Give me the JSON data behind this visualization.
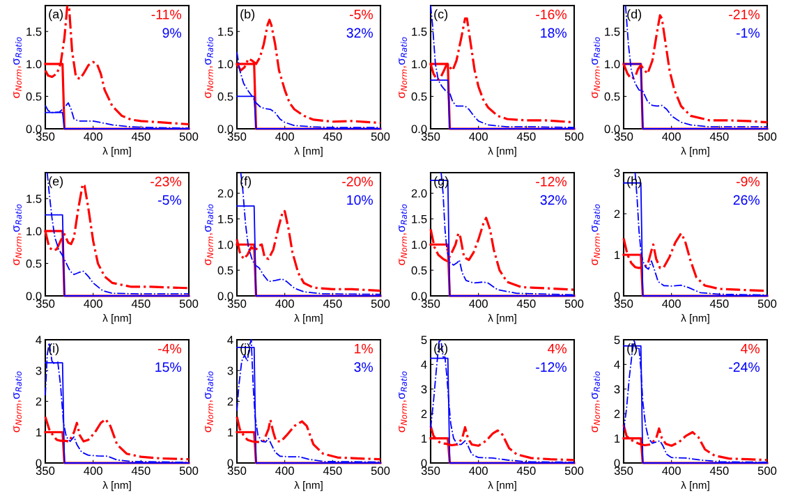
{
  "chart_data": [
    {
      "type": "line",
      "xlabel": "λ [nm]",
      "ylabel": "σ$_{Norm}$,σ$_{Ratio}$",
      "annotations": [
        "(a)",
        "-11%",
        "9%"
      ],
      "xlim": [
        350,
        500
      ],
      "ylim": [
        0,
        1.9
      ],
      "xticks": [
        350,
        400,
        450,
        500
      ],
      "yticks": [
        {
          "value": 0,
          "label": "0.0"
        },
        0.5,
        {
          "value": 1,
          "label": "1.0"
        },
        1.5
      ],
      "grid": false,
      "series": [
        {
          "color": "#ff0000",
          "line_style": "solid",
          "x": [
            350,
            368,
            370,
            500
          ],
          "values": [
            1,
            1,
            0,
            0
          ]
        },
        {
          "color": "#0000ff",
          "line_style": "solid",
          "x": [
            350,
            368,
            370,
            500
          ],
          "values": [
            0.25,
            0.25,
            0,
            0
          ]
        },
        {
          "color": "#ff0000",
          "line_style": "dashdot",
          "x": [
            350,
            353,
            357,
            362,
            366,
            370,
            373,
            375,
            378,
            382,
            386,
            390,
            395,
            400,
            404,
            408,
            412,
            420,
            430,
            440,
            450,
            470,
            500
          ],
          "values": [
            0.9,
            0.82,
            0.8,
            0.85,
            1.0,
            1.4,
            1.9,
            1.85,
            1.2,
            0.8,
            0.77,
            0.85,
            0.98,
            1.03,
            1.0,
            0.85,
            0.6,
            0.35,
            0.2,
            0.14,
            0.12,
            0.1,
            0.07
          ]
        },
        {
          "color": "#0000ff",
          "line_style": "dashdot",
          "x": [
            350,
            353,
            357,
            365,
            370,
            374,
            377,
            380,
            385,
            400,
            410,
            420,
            440,
            460,
            500
          ],
          "values": [
            0.36,
            0.28,
            0.25,
            0.26,
            0.33,
            0.4,
            0.3,
            0.15,
            0.12,
            0.12,
            0.09,
            0.06,
            0.03,
            0.02,
            0.01
          ]
        }
      ]
    },
    {
      "type": "line",
      "xlabel": "λ [nm]",
      "ylabel": "σ$_{Norm}$,σ$_{Ratio}$",
      "annotations": [
        "(b)",
        "-5%",
        "32%"
      ],
      "xlim": [
        350,
        500
      ],
      "ylim": [
        0,
        1.9
      ],
      "xticks": [
        350,
        400,
        450,
        500
      ],
      "yticks": [
        {
          "value": 0,
          "label": "0.0"
        },
        0.5,
        {
          "value": 1,
          "label": "1.0"
        },
        1.5
      ],
      "grid": false,
      "series": [
        {
          "color": "#ff0000",
          "line_style": "solid",
          "x": [
            350,
            368,
            370,
            500
          ],
          "values": [
            1,
            1,
            0,
            0
          ]
        },
        {
          "color": "#0000ff",
          "line_style": "solid",
          "x": [
            350,
            368,
            370,
            500
          ],
          "values": [
            0.5,
            0.5,
            0,
            0
          ]
        },
        {
          "color": "#ff0000",
          "line_style": "dashdot",
          "x": [
            350,
            354,
            358,
            362,
            366,
            370,
            374,
            378,
            382,
            384,
            386,
            390,
            394,
            400,
            405,
            410,
            420,
            430,
            450,
            470,
            500
          ],
          "values": [
            1.0,
            0.9,
            0.95,
            1.08,
            1.05,
            1.0,
            1.1,
            1.3,
            1.6,
            1.68,
            1.6,
            1.3,
            0.9,
            0.6,
            0.4,
            0.3,
            0.2,
            0.14,
            0.11,
            0.12,
            0.09
          ]
        },
        {
          "color": "#0000ff",
          "line_style": "dashdot",
          "x": [
            350,
            353,
            357,
            362,
            366,
            370,
            375,
            380,
            385,
            390,
            395,
            400,
            410,
            430,
            450,
            500
          ],
          "values": [
            1.18,
            0.9,
            0.7,
            0.58,
            0.5,
            0.4,
            0.33,
            0.31,
            0.3,
            0.25,
            0.15,
            0.1,
            0.05,
            0.03,
            0.02,
            0.02
          ]
        }
      ]
    },
    {
      "type": "line",
      "xlabel": "λ [nm]",
      "ylabel": "σ$_{Norm}$,σ$_{Ratio}$",
      "annotations": [
        "(c)",
        "-16%",
        "18%"
      ],
      "xlim": [
        350,
        500
      ],
      "ylim": [
        0,
        1.9
      ],
      "xticks": [
        350,
        400,
        450,
        500
      ],
      "yticks": [
        {
          "value": 0,
          "label": "0.0"
        },
        0.5,
        {
          "value": 1,
          "label": "1.0"
        },
        1.5
      ],
      "grid": false,
      "series": [
        {
          "color": "#ff0000",
          "line_style": "solid",
          "x": [
            350,
            368,
            370,
            500
          ],
          "values": [
            1,
            1,
            0,
            0
          ]
        },
        {
          "color": "#0000ff",
          "line_style": "solid",
          "x": [
            350,
            368,
            370,
            500
          ],
          "values": [
            0.75,
            0.75,
            0,
            0
          ]
        },
        {
          "color": "#ff0000",
          "line_style": "dashdot",
          "x": [
            350,
            353,
            357,
            360,
            364,
            367,
            370,
            373,
            377,
            382,
            386,
            388,
            392,
            396,
            400,
            405,
            410,
            420,
            430,
            450,
            470,
            500
          ],
          "values": [
            1.0,
            0.85,
            0.75,
            0.78,
            0.9,
            1.0,
            0.95,
            0.9,
            1.05,
            1.4,
            1.7,
            1.7,
            1.3,
            0.9,
            0.65,
            0.45,
            0.33,
            0.2,
            0.15,
            0.13,
            0.13,
            0.1
          ]
        },
        {
          "color": "#0000ff",
          "line_style": "dashdot",
          "x": [
            350,
            352,
            355,
            358,
            362,
            366,
            370,
            373,
            377,
            382,
            386,
            390,
            395,
            400,
            410,
            430,
            460,
            500
          ],
          "values": [
            1.9,
            1.6,
            1.0,
            0.75,
            0.65,
            0.58,
            0.55,
            0.42,
            0.35,
            0.35,
            0.35,
            0.3,
            0.2,
            0.12,
            0.06,
            0.03,
            0.03,
            0.02
          ]
        }
      ]
    },
    {
      "type": "line",
      "xlabel": "λ [nm]",
      "ylabel": "σ$_{Norm}$,σ$_{Ratio}$",
      "annotations": [
        "(d)",
        "-21%",
        "-1%"
      ],
      "xlim": [
        350,
        500
      ],
      "ylim": [
        0,
        1.9
      ],
      "xticks": [
        350,
        400,
        450,
        500
      ],
      "yticks": [
        {
          "value": 0,
          "label": "0.0"
        },
        0.5,
        {
          "value": 1,
          "label": "1.0"
        },
        1.5
      ],
      "grid": false,
      "series": [
        {
          "color": "#ff0000",
          "line_style": "solid",
          "x": [
            350,
            368,
            370,
            500
          ],
          "values": [
            1,
            1,
            0,
            0
          ]
        },
        {
          "color": "#0000ff",
          "line_style": "solid",
          "x": [
            350,
            368,
            370,
            500
          ],
          "values": [
            1,
            1,
            0,
            0
          ]
        },
        {
          "color": "#ff0000",
          "line_style": "dashdot",
          "x": [
            350,
            354,
            358,
            362,
            365,
            368,
            371,
            375,
            380,
            385,
            388,
            390,
            394,
            398,
            403,
            410,
            420,
            440,
            460,
            480,
            500
          ],
          "values": [
            1.0,
            0.85,
            0.77,
            0.8,
            0.92,
            0.98,
            0.92,
            0.85,
            1.05,
            1.5,
            1.75,
            1.7,
            1.3,
            0.9,
            0.6,
            0.35,
            0.2,
            0.13,
            0.13,
            0.12,
            0.1
          ]
        },
        {
          "color": "#0000ff",
          "line_style": "dashdot",
          "x": [
            352,
            355,
            358,
            362,
            366,
            370,
            375,
            380,
            385,
            390,
            395,
            400,
            410,
            420,
            440,
            500
          ],
          "values": [
            1.9,
            1.3,
            0.9,
            0.7,
            0.6,
            0.58,
            0.42,
            0.36,
            0.35,
            0.36,
            0.3,
            0.2,
            0.1,
            0.06,
            0.03,
            0.03
          ]
        }
      ]
    },
    {
      "type": "line",
      "xlabel": "λ [nm]",
      "ylabel": "σ$_{Norm}$,σ$_{Ratio}$",
      "annotations": [
        "(e)",
        "-23%",
        "-5%"
      ],
      "xlim": [
        350,
        500
      ],
      "ylim": [
        0,
        1.9
      ],
      "xticks": [
        350,
        400,
        450,
        500
      ],
      "yticks": [
        {
          "value": 0,
          "label": "0.0"
        },
        0.5,
        {
          "value": 1,
          "label": "1.0"
        },
        1.5
      ],
      "grid": false,
      "series": [
        {
          "color": "#ff0000",
          "line_style": "solid",
          "x": [
            350,
            368,
            370,
            500
          ],
          "values": [
            1,
            1,
            0,
            0
          ]
        },
        {
          "color": "#0000ff",
          "line_style": "solid",
          "x": [
            350,
            368,
            370,
            500
          ],
          "values": [
            1.25,
            1.25,
            0,
            0
          ]
        },
        {
          "color": "#ff0000",
          "line_style": "dashdot",
          "x": [
            350,
            354,
            358,
            362,
            366,
            370,
            374,
            377,
            380,
            384,
            389,
            391,
            395,
            400,
            405,
            412,
            420,
            440,
            460,
            480,
            500
          ],
          "values": [
            1.0,
            0.75,
            0.7,
            0.72,
            0.85,
            0.95,
            0.82,
            0.8,
            0.9,
            1.3,
            1.72,
            1.7,
            1.35,
            0.85,
            0.5,
            0.3,
            0.2,
            0.14,
            0.14,
            0.13,
            0.12
          ]
        },
        {
          "color": "#0000ff",
          "line_style": "dashdot",
          "x": [
            352,
            354,
            357,
            360,
            364,
            368,
            372,
            376,
            380,
            385,
            390,
            395,
            400,
            410,
            420,
            450,
            500
          ],
          "values": [
            1.9,
            1.6,
            1.2,
            0.9,
            0.72,
            0.62,
            0.5,
            0.38,
            0.33,
            0.36,
            0.38,
            0.3,
            0.2,
            0.08,
            0.04,
            0.03,
            0.03
          ]
        }
      ]
    },
    {
      "type": "line",
      "xlabel": "λ [nm]",
      "ylabel": "σ$_{Norm}$,σ$_{Ratio}$",
      "annotations": [
        "(f)",
        "-20%",
        "10%"
      ],
      "xlim": [
        350,
        500
      ],
      "ylim": [
        0,
        2.4
      ],
      "xticks": [
        350,
        400,
        450,
        500
      ],
      "yticks": [
        {
          "value": 0,
          "label": "0.0"
        },
        0.5,
        {
          "value": 1,
          "label": "1.0"
        },
        1.5,
        {
          "value": 2,
          "label": "2.0"
        }
      ],
      "grid": false,
      "series": [
        {
          "color": "#ff0000",
          "line_style": "solid",
          "x": [
            350,
            368,
            370,
            500
          ],
          "values": [
            1,
            1,
            0,
            0
          ]
        },
        {
          "color": "#0000ff",
          "line_style": "solid",
          "x": [
            350,
            368,
            370,
            500
          ],
          "values": [
            1.75,
            1.75,
            0,
            0
          ]
        },
        {
          "color": "#ff0000",
          "line_style": "dashdot",
          "x": [
            350,
            353,
            357,
            361,
            365,
            369,
            373,
            376,
            379,
            383,
            388,
            393,
            398,
            400,
            404,
            408,
            414,
            420,
            430,
            450,
            470,
            500
          ],
          "values": [
            1.1,
            0.85,
            0.72,
            0.8,
            0.95,
            0.88,
            0.98,
            1.0,
            0.75,
            0.72,
            0.9,
            1.3,
            1.65,
            1.65,
            1.3,
            0.85,
            0.45,
            0.25,
            0.16,
            0.13,
            0.13,
            0.1
          ]
        },
        {
          "color": "#0000ff",
          "line_style": "dashdot",
          "x": [
            354,
            356,
            359,
            362,
            366,
            369,
            373,
            378,
            383,
            390,
            397,
            402,
            410,
            420,
            440,
            500
          ],
          "values": [
            2.4,
            2.1,
            1.4,
            0.95,
            0.7,
            0.6,
            0.55,
            0.4,
            0.28,
            0.3,
            0.33,
            0.28,
            0.15,
            0.08,
            0.04,
            0.03
          ]
        }
      ]
    },
    {
      "type": "line",
      "xlabel": "λ [nm]",
      "ylabel": "σ$_{Norm}$,σ$_{Ratio}$",
      "annotations": [
        "(g)",
        "-12%",
        "32%"
      ],
      "xlim": [
        350,
        500
      ],
      "ylim": [
        0,
        2.4
      ],
      "xticks": [
        350,
        400,
        450,
        500
      ],
      "yticks": [
        {
          "value": 0,
          "label": "0.0"
        },
        0.5,
        {
          "value": 1,
          "label": "1.0"
        },
        1.5,
        {
          "value": 2,
          "label": "2.0"
        }
      ],
      "grid": false,
      "series": [
        {
          "color": "#ff0000",
          "line_style": "solid",
          "x": [
            350,
            368,
            370,
            500
          ],
          "values": [
            1,
            1,
            0,
            0
          ]
        },
        {
          "color": "#0000ff",
          "line_style": "solid",
          "x": [
            350,
            368,
            370,
            500
          ],
          "values": [
            2.25,
            2.25,
            0,
            0
          ]
        },
        {
          "color": "#ff0000",
          "line_style": "dashdot",
          "x": [
            350,
            354,
            358,
            363,
            367,
            371,
            376,
            379,
            381,
            385,
            390,
            395,
            400,
            405,
            408,
            412,
            416,
            422,
            430,
            445,
            470,
            500
          ],
          "values": [
            1.3,
            0.95,
            0.8,
            0.72,
            0.68,
            0.8,
            1.0,
            1.22,
            1.15,
            0.75,
            0.7,
            0.85,
            1.1,
            1.4,
            1.52,
            1.3,
            0.9,
            0.5,
            0.27,
            0.17,
            0.15,
            0.12
          ]
        },
        {
          "color": "#0000ff",
          "line_style": "dashdot",
          "x": [
            361,
            363,
            365,
            367,
            370,
            374,
            378,
            380,
            383,
            387,
            395,
            405,
            410,
            420,
            440,
            500
          ],
          "values": [
            2.4,
            2.0,
            1.3,
            0.9,
            0.65,
            0.6,
            0.65,
            0.7,
            0.45,
            0.3,
            0.25,
            0.27,
            0.25,
            0.12,
            0.05,
            0.02
          ]
        }
      ]
    },
    {
      "type": "line",
      "xlabel": "λ [nm]",
      "ylabel": "σ$_{Norm}$,σ$_{Ratio}$",
      "annotations": [
        "(h)",
        "-9%",
        "26%"
      ],
      "xlim": [
        350,
        500
      ],
      "ylim": [
        0,
        3
      ],
      "xticks": [
        350,
        400,
        450,
        500
      ],
      "yticks": [
        0,
        1,
        2,
        3
      ],
      "grid": false,
      "series": [
        {
          "color": "#ff0000",
          "line_style": "solid",
          "x": [
            350,
            368,
            370,
            500
          ],
          "values": [
            1,
            1,
            0,
            0
          ]
        },
        {
          "color": "#0000ff",
          "line_style": "solid",
          "x": [
            350,
            368,
            370,
            500
          ],
          "values": [
            2.75,
            2.75,
            0,
            0
          ]
        },
        {
          "color": "#ff0000",
          "line_style": "dashdot",
          "x": [
            350,
            354,
            358,
            362,
            366,
            370,
            375,
            379,
            381,
            384,
            388,
            392,
            398,
            404,
            410,
            414,
            420,
            426,
            435,
            450,
            470,
            500
          ],
          "values": [
            1.4,
            1.0,
            0.8,
            0.7,
            0.68,
            0.7,
            0.75,
            1.1,
            1.25,
            0.9,
            0.68,
            0.7,
            0.95,
            1.3,
            1.52,
            1.35,
            0.85,
            0.45,
            0.25,
            0.17,
            0.15,
            0.12
          ]
        },
        {
          "color": "#0000ff",
          "line_style": "dashdot",
          "x": [
            362,
            364,
            366,
            368,
            370,
            373,
            376,
            379,
            382,
            386,
            392,
            400,
            410,
            418,
            430,
            450,
            500
          ],
          "values": [
            3.0,
            2.4,
            1.6,
            1.1,
            0.85,
            0.7,
            0.65,
            0.85,
            0.65,
            0.35,
            0.25,
            0.24,
            0.26,
            0.2,
            0.08,
            0.04,
            0.02
          ]
        }
      ]
    },
    {
      "type": "line",
      "xlabel": "λ [nm]",
      "ylabel": "σ$_{Norm}$,σ$_{Ratio}$",
      "annotations": [
        "(i)",
        "-4%",
        "15%"
      ],
      "xlim": [
        350,
        500
      ],
      "ylim": [
        0,
        4
      ],
      "xticks": [
        350,
        400,
        450,
        500
      ],
      "yticks": [
        0,
        1,
        2,
        3,
        4
      ],
      "grid": false,
      "series": [
        {
          "color": "#ff0000",
          "line_style": "solid",
          "x": [
            350,
            368,
            370,
            500
          ],
          "values": [
            1,
            1,
            0,
            0
          ]
        },
        {
          "color": "#0000ff",
          "line_style": "solid",
          "x": [
            350,
            368,
            370,
            500
          ],
          "values": [
            3.25,
            3.25,
            0,
            0
          ]
        },
        {
          "color": "#ff0000",
          "line_style": "dashdot",
          "x": [
            350,
            354,
            358,
            362,
            366,
            370,
            375,
            380,
            383,
            386,
            390,
            395,
            402,
            408,
            413,
            418,
            425,
            435,
            450,
            470,
            500
          ],
          "values": [
            1.5,
            1.1,
            0.9,
            0.75,
            0.72,
            0.72,
            0.7,
            1.0,
            1.3,
            0.9,
            0.7,
            0.75,
            1.0,
            1.3,
            1.42,
            1.2,
            0.6,
            0.3,
            0.2,
            0.15,
            0.12
          ]
        },
        {
          "color": "#0000ff",
          "line_style": "dashdot",
          "x": [
            350,
            352,
            354,
            357,
            360,
            363,
            366,
            369,
            372,
            376,
            380,
            383,
            388,
            395,
            405,
            415,
            425,
            440,
            500
          ],
          "values": [
            2.2,
            3.5,
            3.9,
            3.3,
            3.2,
            3.3,
            2.5,
            1.3,
            0.85,
            0.7,
            0.85,
            0.6,
            0.35,
            0.25,
            0.23,
            0.22,
            0.1,
            0.05,
            0.02
          ]
        }
      ]
    },
    {
      "type": "line",
      "xlabel": "λ [nm]",
      "ylabel": "σ$_{Norm}$,σ$_{Ratio}$",
      "annotations": [
        "(j)",
        "1%",
        "3%"
      ],
      "xlim": [
        350,
        500
      ],
      "ylim": [
        0,
        4
      ],
      "xticks": [
        350,
        400,
        450,
        500
      ],
      "yticks": [
        0,
        1,
        2,
        3,
        4
      ],
      "grid": false,
      "series": [
        {
          "color": "#ff0000",
          "line_style": "solid",
          "x": [
            350,
            368,
            370,
            500
          ],
          "values": [
            1,
            1,
            0,
            0
          ]
        },
        {
          "color": "#0000ff",
          "line_style": "solid",
          "x": [
            350,
            368,
            370,
            500
          ],
          "values": [
            3.75,
            3.75,
            0,
            0
          ]
        },
        {
          "color": "#ff0000",
          "line_style": "dashdot",
          "x": [
            350,
            353,
            357,
            361,
            366,
            372,
            378,
            383,
            385,
            388,
            391,
            396,
            402,
            410,
            418,
            423,
            430,
            440,
            455,
            475,
            500
          ],
          "values": [
            1.5,
            1.1,
            0.9,
            0.75,
            0.7,
            0.68,
            0.72,
            1.1,
            1.4,
            1.0,
            0.7,
            0.7,
            0.9,
            1.2,
            1.35,
            1.2,
            0.6,
            0.3,
            0.18,
            0.15,
            0.12
          ]
        },
        {
          "color": "#0000ff",
          "line_style": "dashdot",
          "x": [
            350,
            352,
            355,
            358,
            361,
            363,
            365,
            367,
            369,
            372,
            376,
            380,
            383,
            386,
            390,
            395,
            405,
            415,
            425,
            440,
            500
          ],
          "values": [
            1.7,
            2.5,
            3.3,
            3.5,
            3.3,
            3.8,
            4.0,
            2.5,
            1.5,
            0.9,
            0.7,
            0.68,
            0.8,
            0.6,
            0.35,
            0.22,
            0.2,
            0.2,
            0.12,
            0.05,
            0.03
          ]
        }
      ]
    },
    {
      "type": "line",
      "xlabel": "λ [nm]",
      "ylabel": "σ$_{Norm}$,σ$_{Ratio}$",
      "annotations": [
        "(k)",
        "4%",
        "-12%"
      ],
      "xlim": [
        350,
        500
      ],
      "ylim": [
        0,
        5
      ],
      "xticks": [
        350,
        400,
        450,
        500
      ],
      "yticks": [
        0,
        1,
        2,
        3,
        4,
        5
      ],
      "grid": false,
      "series": [
        {
          "color": "#ff0000",
          "line_style": "solid",
          "x": [
            350,
            368,
            370,
            500
          ],
          "values": [
            1,
            1,
            0,
            0
          ]
        },
        {
          "color": "#0000ff",
          "line_style": "solid",
          "x": [
            350,
            368,
            370,
            500
          ],
          "values": [
            4.25,
            4.25,
            0,
            0
          ]
        },
        {
          "color": "#ff0000",
          "line_style": "dashdot",
          "x": [
            350,
            353,
            357,
            361,
            366,
            372,
            378,
            383,
            386,
            389,
            393,
            400,
            408,
            415,
            420,
            425,
            432,
            440,
            455,
            475,
            500
          ],
          "values": [
            1.5,
            1.1,
            0.9,
            0.8,
            0.78,
            0.72,
            0.75,
            1.0,
            1.45,
            1.0,
            0.75,
            0.7,
            0.9,
            1.2,
            1.32,
            1.15,
            0.6,
            0.35,
            0.2,
            0.15,
            0.12
          ]
        },
        {
          "color": "#0000ff",
          "line_style": "dashdot",
          "x": [
            350,
            353,
            356,
            359,
            361,
            363,
            365,
            367,
            369,
            371,
            374,
            378,
            382,
            386,
            389,
            393,
            400,
            415,
            430,
            450,
            500
          ],
          "values": [
            1.4,
            2.5,
            3.8,
            5.0,
            4.9,
            4.3,
            4.3,
            3.5,
            2.5,
            1.6,
            1.0,
            0.75,
            0.75,
            0.9,
            0.7,
            0.35,
            0.22,
            0.2,
            0.12,
            0.05,
            0.03
          ]
        }
      ]
    },
    {
      "type": "line",
      "xlabel": "λ [nm]",
      "ylabel": "σ$_{Norm}$,σ$_{Ratio}$",
      "annotations": [
        "(l)",
        "4%",
        "-24%"
      ],
      "xlim": [
        350,
        500
      ],
      "ylim": [
        0,
        5
      ],
      "xticks": [
        350,
        400,
        450,
        500
      ],
      "yticks": [
        0,
        1,
        2,
        3,
        4,
        5
      ],
      "grid": false,
      "series": [
        {
          "color": "#ff0000",
          "line_style": "solid",
          "x": [
            350,
            368,
            370,
            500
          ],
          "values": [
            1,
            1,
            0,
            0
          ]
        },
        {
          "color": "#0000ff",
          "line_style": "solid",
          "x": [
            350,
            368,
            370,
            500
          ],
          "values": [
            4.75,
            4.75,
            0,
            0
          ]
        },
        {
          "color": "#ff0000",
          "line_style": "dashdot",
          "x": [
            350,
            353,
            357,
            362,
            366,
            372,
            378,
            384,
            387,
            390,
            394,
            400,
            408,
            415,
            422,
            428,
            435,
            445,
            460,
            480,
            500
          ],
          "values": [
            1.55,
            1.1,
            0.95,
            0.85,
            0.78,
            0.72,
            0.75,
            1.0,
            1.4,
            1.0,
            0.78,
            0.7,
            0.85,
            1.1,
            1.25,
            1.05,
            0.55,
            0.3,
            0.18,
            0.15,
            0.12
          ]
        },
        {
          "color": "#0000ff",
          "line_style": "dashdot",
          "x": [
            350,
            353,
            356,
            359,
            361,
            363,
            366,
            368,
            370,
            373,
            376,
            380,
            384,
            388,
            391,
            395,
            400,
            415,
            430,
            450,
            500
          ],
          "values": [
            1.3,
            2.2,
            3.5,
            4.5,
            5.0,
            4.6,
            4.7,
            3.8,
            2.5,
            1.5,
            1.0,
            0.8,
            0.85,
            0.9,
            0.7,
            0.35,
            0.22,
            0.2,
            0.12,
            0.05,
            0.03
          ]
        }
      ]
    }
  ]
}
